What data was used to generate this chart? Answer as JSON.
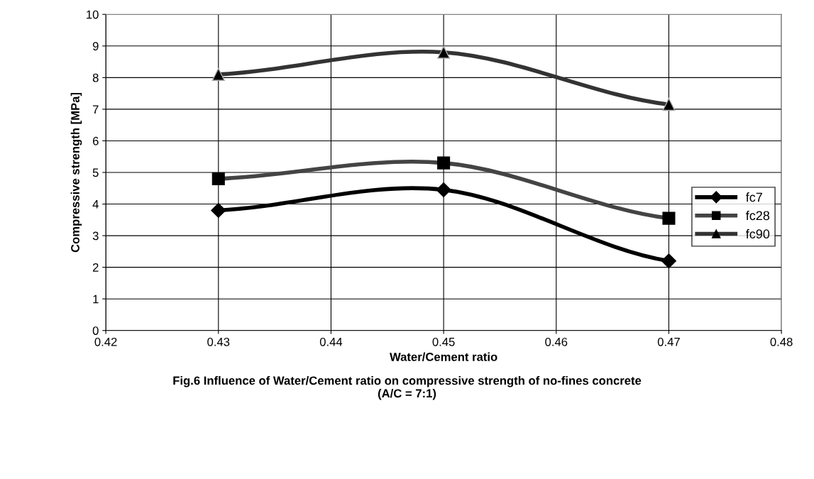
{
  "chart_data": {
    "type": "line",
    "x": [
      0.43,
      0.45,
      0.47
    ],
    "series": [
      {
        "name": "fc7",
        "color": "#000000",
        "marker": "diamond",
        "values": [
          3.8,
          4.45,
          2.2
        ]
      },
      {
        "name": "fc28",
        "color": "#444444",
        "marker": "square",
        "values": [
          4.8,
          5.3,
          3.55
        ]
      },
      {
        "name": "fc90",
        "color": "#333333",
        "marker": "triangle",
        "values": [
          8.1,
          8.8,
          7.15
        ]
      }
    ],
    "xlabel": "Water/Cement ratio",
    "ylabel": "Compressive strength [MPa]",
    "xlim": [
      0.42,
      0.48
    ],
    "xticks": [
      {
        "value": 0.42,
        "label": "0.42"
      },
      {
        "value": 0.43,
        "label": "0.43"
      },
      {
        "value": 0.44,
        "label": "0.44"
      },
      {
        "value": 0.45,
        "label": "0.45"
      },
      {
        "value": 0.46,
        "label": "0.46"
      },
      {
        "value": 0.47,
        "label": "0.47"
      },
      {
        "value": 0.48,
        "label": "0.48"
      }
    ],
    "ylim": [
      0,
      10
    ],
    "yticks": [
      0,
      1,
      2,
      3,
      4,
      5,
      6,
      7,
      8,
      9,
      10
    ],
    "grid": true,
    "legend": "right",
    "annotations": [
      "Fig.6 Influence of Water/Cement ratio on compressive strength of no-fines concrete\n(A/C = 7:1)"
    ]
  }
}
